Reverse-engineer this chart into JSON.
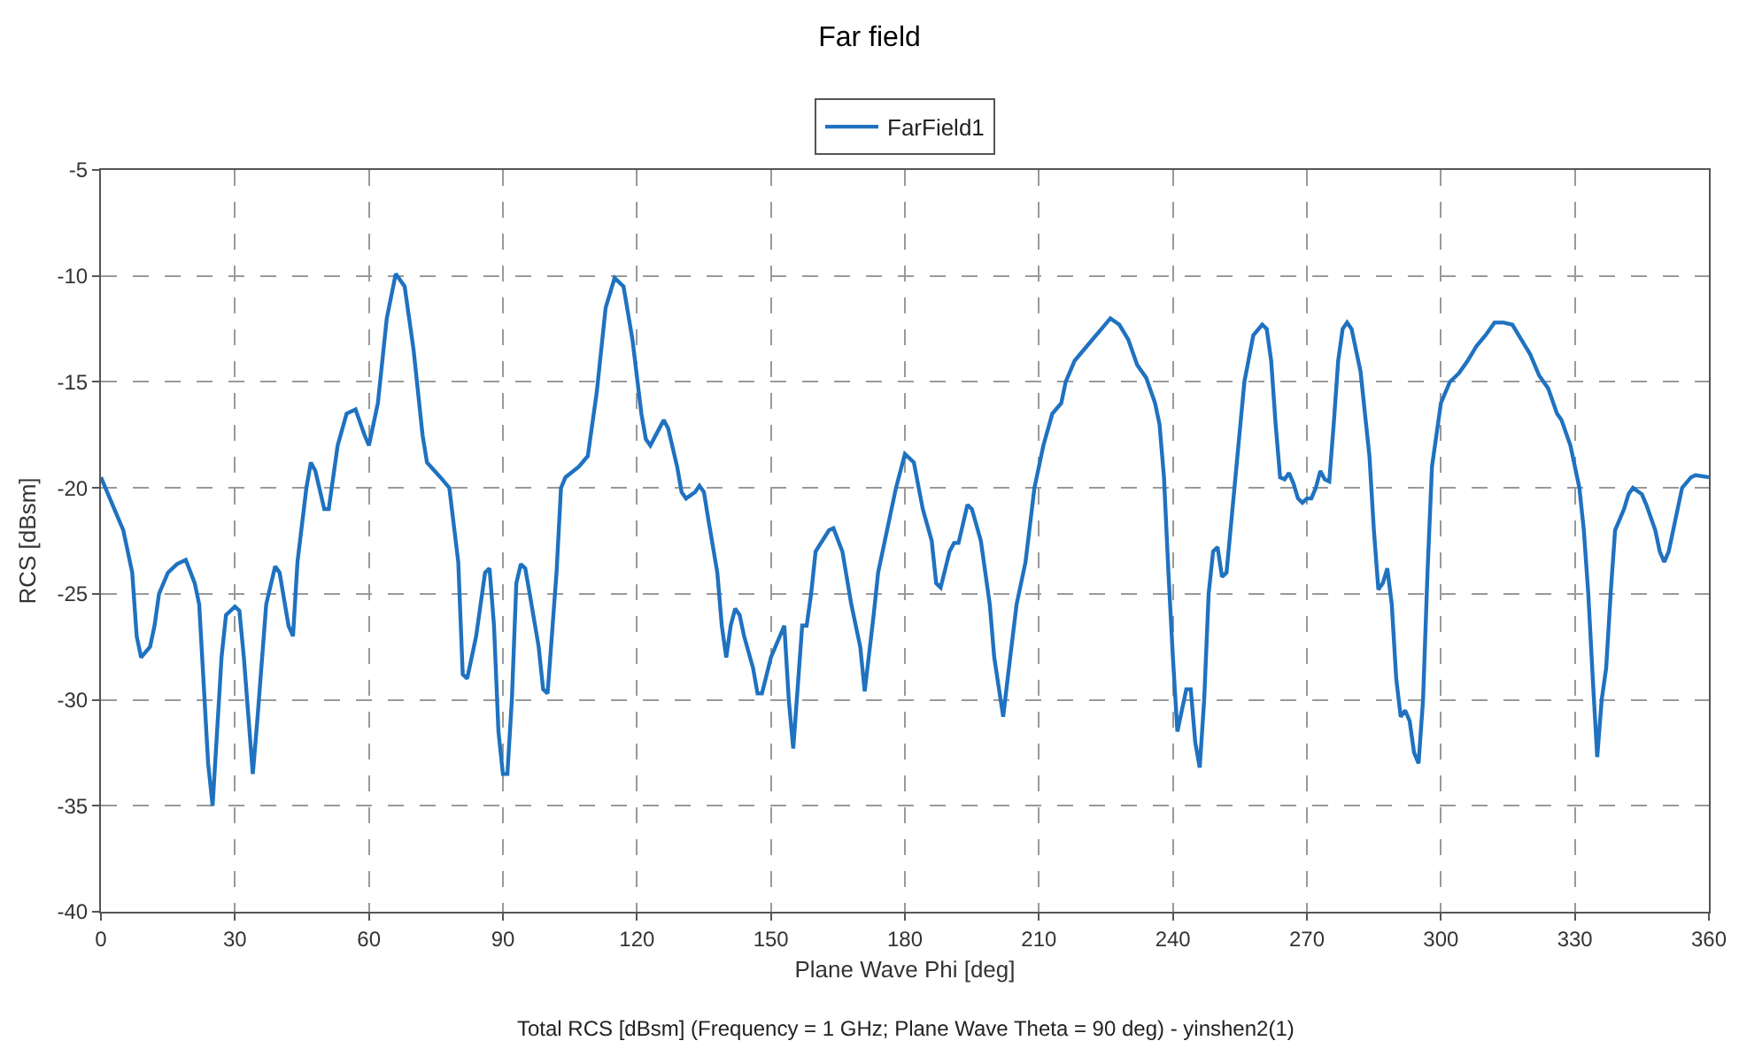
{
  "chart_data": {
    "type": "line",
    "title": "Far field",
    "xlabel": "Plane Wave Phi [deg]",
    "ylabel": "RCS [dBsm]",
    "annotations": [
      "Total RCS [dBsm] (Frequency = 1 GHz; Plane Wave Theta = 90 deg) - yinshen2(1)"
    ],
    "xlim": [
      0,
      360
    ],
    "xticks": [
      0,
      30,
      60,
      90,
      120,
      150,
      180,
      210,
      240,
      270,
      300,
      330,
      360
    ],
    "ylim": [
      -40,
      -5
    ],
    "yticks": [
      -40,
      -35,
      -30,
      -25,
      -20,
      -15,
      -10,
      -5
    ],
    "grid": true,
    "legend": "top",
    "line_style": "solid",
    "marker": "none",
    "series": [
      {
        "name": "FarField1",
        "color": "#1f72c0",
        "x": [
          0,
          2,
          5,
          7,
          8,
          9,
          11,
          12,
          13,
          15,
          17,
          19,
          21,
          22,
          24,
          25,
          27,
          28,
          30,
          31,
          32,
          34,
          35,
          37,
          39,
          40,
          42,
          43,
          44,
          46,
          47,
          48,
          50,
          51,
          53,
          55,
          57,
          59,
          60,
          62,
          64,
          66,
          68,
          70,
          72,
          73,
          76,
          78,
          80,
          81,
          82,
          84,
          86,
          87,
          88,
          89,
          90,
          91,
          92,
          93,
          94,
          95,
          96,
          98,
          99,
          100,
          102,
          103,
          104,
          107,
          109,
          111,
          113,
          115,
          117,
          119,
          121,
          122,
          123,
          125,
          126,
          127,
          129,
          130,
          131,
          133,
          134,
          135,
          136,
          138,
          139,
          140,
          141,
          142,
          143,
          144,
          146,
          147,
          148,
          150,
          151,
          152,
          153,
          154,
          155,
          157,
          158,
          159,
          160,
          163,
          164,
          166,
          168,
          170,
          171,
          173,
          174,
          176,
          178,
          180,
          182,
          184,
          186,
          187,
          188,
          190,
          191,
          192,
          194,
          195,
          197,
          199,
          200,
          202,
          203,
          205,
          207,
          209,
          211,
          213,
          215,
          216,
          218,
          220,
          222,
          224,
          226,
          228,
          230,
          232,
          234,
          236,
          237,
          238,
          239,
          240,
          241,
          242,
          243,
          244,
          245,
          246,
          247,
          248,
          249,
          250,
          251,
          252,
          254,
          256,
          258,
          260,
          261,
          262,
          263,
          264,
          265,
          266,
          267,
          268,
          269,
          270,
          271,
          272,
          273,
          274,
          275,
          276,
          277,
          278,
          279,
          280,
          282,
          284,
          285,
          286,
          287,
          288,
          289,
          290,
          291,
          292,
          293,
          294,
          295,
          296,
          297,
          298,
          300,
          302,
          304,
          306,
          308,
          310,
          312,
          314,
          316,
          318,
          320,
          322,
          324,
          326,
          327,
          329,
          331,
          332,
          333,
          334,
          335,
          336,
          337,
          338,
          339,
          341,
          342,
          343,
          345,
          346,
          348,
          349,
          350,
          351,
          353,
          354,
          356,
          357,
          360
        ],
        "values": [
          -19.5,
          -20.5,
          -22,
          -24,
          -27,
          -28,
          -27.5,
          -26.5,
          -25,
          -24,
          -23.6,
          -23.4,
          -24.5,
          -25.5,
          -33,
          -35,
          -28,
          -26,
          -25.6,
          -25.8,
          -28,
          -33.5,
          -31,
          -25.5,
          -23.7,
          -24,
          -26.5,
          -27,
          -23.5,
          -20,
          -18.8,
          -19.2,
          -21,
          -21,
          -18,
          -16.5,
          -16.3,
          -17.5,
          -18,
          -16,
          -12,
          -9.9,
          -10.5,
          -13.5,
          -17.5,
          -18.8,
          -19.5,
          -20,
          -23.5,
          -28.8,
          -29,
          -27,
          -24,
          -23.8,
          -26.5,
          -31.5,
          -33.5,
          -33.5,
          -30,
          -24.5,
          -23.6,
          -23.8,
          -25,
          -27.5,
          -29.5,
          -29.7,
          -24,
          -20,
          -19.5,
          -19,
          -18.5,
          -15.5,
          -11.5,
          -10.1,
          -10.5,
          -13,
          -16.5,
          -17.7,
          -18,
          -17.2,
          -16.8,
          -17.2,
          -19,
          -20.2,
          -20.5,
          -20.2,
          -19.9,
          -20.2,
          -21.5,
          -24,
          -26.5,
          -28,
          -26.5,
          -25.7,
          -26,
          -27,
          -28.5,
          -29.7,
          -29.7,
          -28,
          -27.5,
          -27,
          -26.5,
          -30,
          -32.3,
          -26.5,
          -26.5,
          -25,
          -23,
          -22,
          -21.9,
          -23,
          -25.5,
          -27.5,
          -29.6,
          -26,
          -24,
          -22,
          -20,
          -18.4,
          -18.8,
          -21,
          -22.5,
          -24.5,
          -24.7,
          -23,
          -22.6,
          -22.6,
          -20.8,
          -21,
          -22.5,
          -25.5,
          -28,
          -30.8,
          -29,
          -25.5,
          -23.5,
          -20,
          -18,
          -16.5,
          -16,
          -15,
          -14,
          -13.5,
          -13,
          -12.5,
          -12,
          -12.3,
          -13,
          -14.2,
          -14.8,
          -16,
          -17,
          -19.5,
          -24,
          -28,
          -31.5,
          -30.5,
          -29.5,
          -29.5,
          -32,
          -33.2,
          -30,
          -25,
          -23,
          -22.8,
          -24.2,
          -24,
          -19.5,
          -15,
          -12.8,
          -12.3,
          -12.5,
          -14,
          -17,
          -19.5,
          -19.6,
          -19.3,
          -19.8,
          -20.5,
          -20.7,
          -20.5,
          -20.5,
          -20,
          -19.2,
          -19.6,
          -19.7,
          -17,
          -14,
          -12.5,
          -12.2,
          -12.5,
          -14.5,
          -18.5,
          -22,
          -24.8,
          -24.5,
          -23.8,
          -25.5,
          -29,
          -30.8,
          -30.5,
          -31,
          -32.5,
          -33,
          -30,
          -24,
          -19,
          -16,
          -15,
          -14.6,
          -14,
          -13.3,
          -12.8,
          -12.2,
          -12.2,
          -12.3,
          -13,
          -13.7,
          -14.7,
          -15.3,
          -16.5,
          -16.8,
          -18,
          -20,
          -22,
          -25,
          -29,
          -32.7,
          -30,
          -28.5,
          -25,
          -22,
          -21,
          -20.3,
          -20,
          -20.3,
          -20.8,
          -22,
          -23,
          -23.5,
          -23,
          -21,
          -20,
          -19.5,
          -19.4,
          -19.5
        ]
      }
    ]
  }
}
